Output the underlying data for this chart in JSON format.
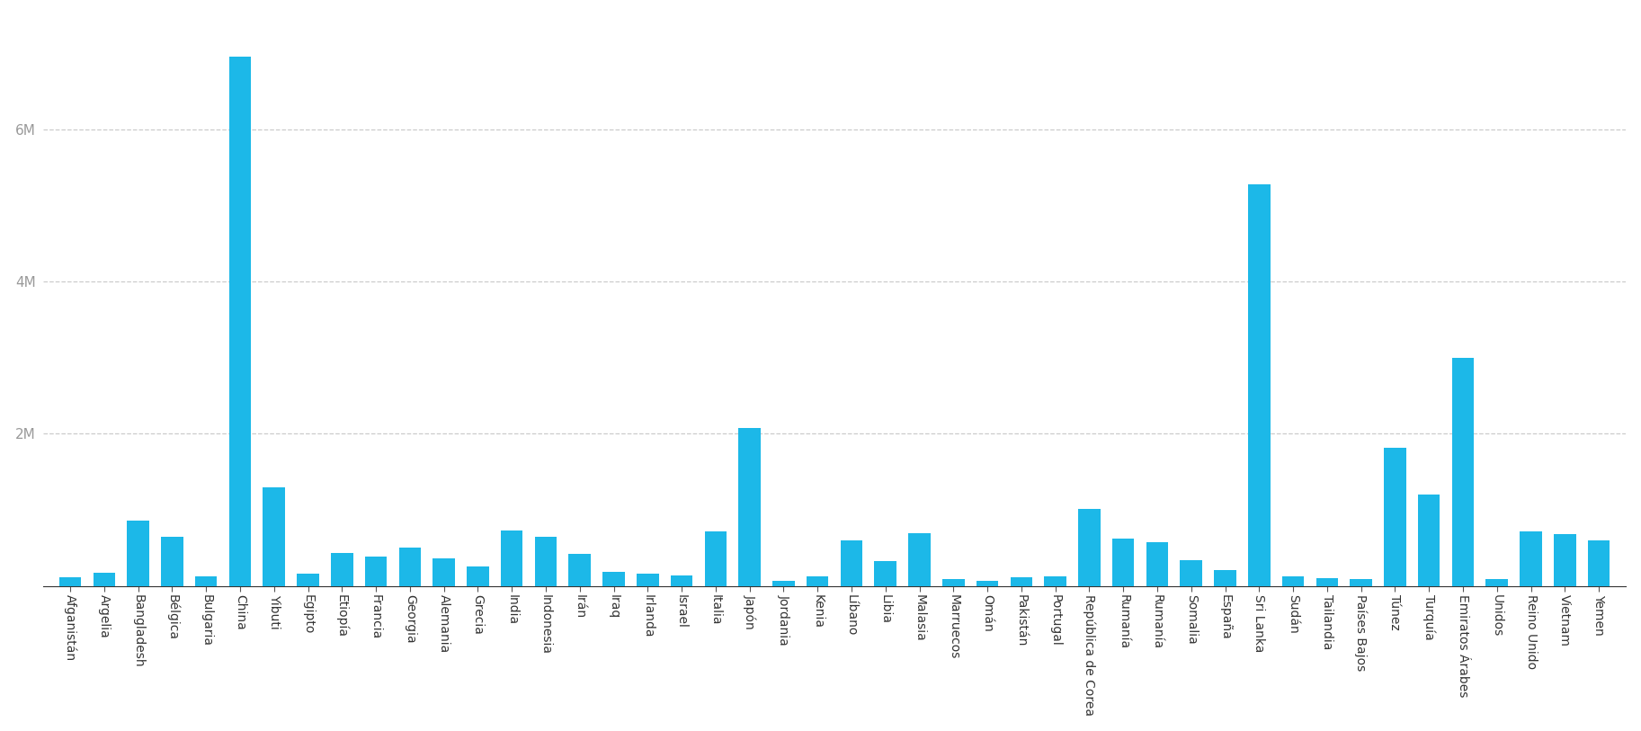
{
  "categories": [
    "Afganistán",
    "Argelia",
    "Bangladesh",
    "Bélgica",
    "Bulgaria",
    "China",
    "Yibuti",
    "Egipto",
    "Etiopía",
    "Francia",
    "Georgia",
    "Alemania",
    "Grecia",
    "India",
    "Indonesia",
    "Irán",
    "Iraq",
    "Irlanda",
    "Israel",
    "Italia",
    "Japón",
    "Jordania",
    "Kenia",
    "Líbano",
    "Libia",
    "Malasia",
    "Marruecos",
    "Omán",
    "Pakistán",
    "Portugal",
    "República de Corea",
    "Rumanía",
    "Rumanía",
    "Somalia",
    "España",
    "Sri Lanka",
    "Sudán",
    "Tailandia",
    "Países Bajos",
    "Túnez",
    "Turquía",
    "Emiratos Árabes",
    "Unidos",
    "Reino Unido",
    "Vietnam",
    "Yemen"
  ],
  "values": [
    115000,
    175000,
    860000,
    640000,
    130000,
    6950000,
    1300000,
    160000,
    430000,
    385000,
    500000,
    360000,
    260000,
    730000,
    650000,
    425000,
    185000,
    155000,
    135000,
    720000,
    2080000,
    70000,
    130000,
    595000,
    325000,
    690000,
    88000,
    72000,
    115000,
    130000,
    1010000,
    620000,
    580000,
    335000,
    210000,
    5280000,
    120000,
    98000,
    88000,
    1820000,
    1200000,
    3000000,
    90000,
    720000,
    680000,
    595000
  ],
  "bar_color": "#1cb8e8",
  "background_color": "#ffffff",
  "grid_color": "#cccccc",
  "ylim": [
    0,
    7500000
  ],
  "yticks": [
    2000000,
    4000000,
    6000000
  ],
  "ytick_labels": [
    "2M",
    "4M",
    "6M"
  ],
  "bar_width": 0.65,
  "label_fontsize": 10,
  "ytick_fontsize": 11
}
